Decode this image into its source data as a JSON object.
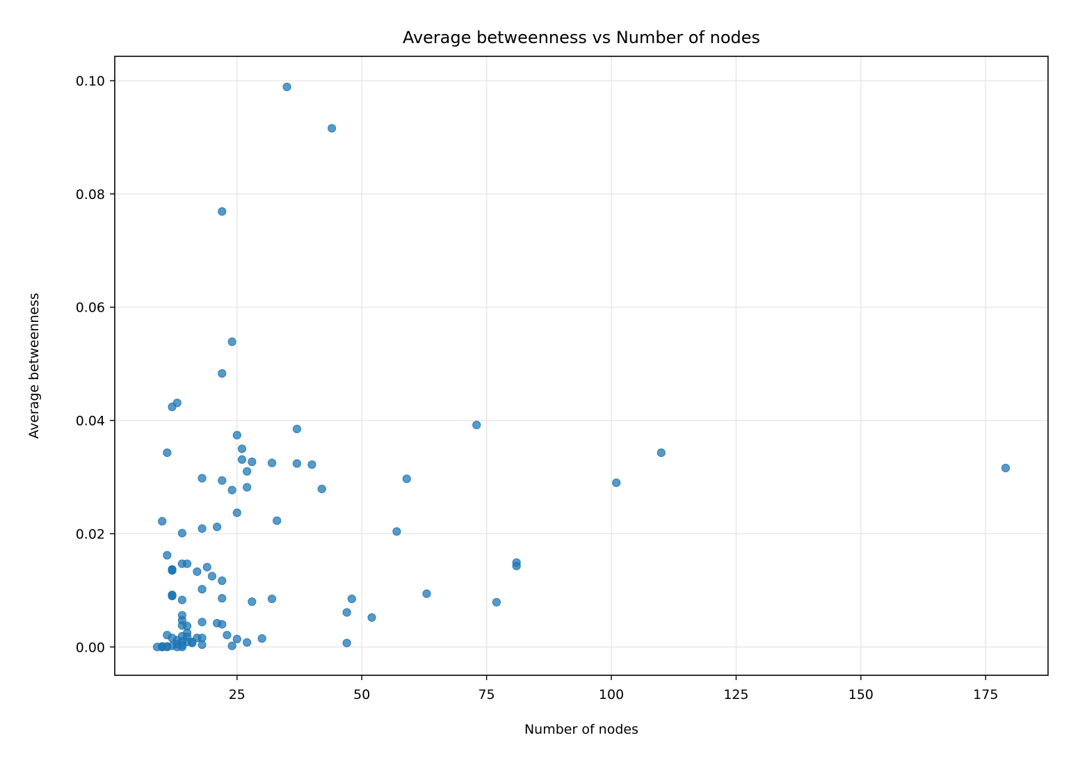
{
  "chart_data": {
    "type": "scatter",
    "title": "Average betweenness vs Number of nodes",
    "xlabel": "Number of nodes",
    "ylabel": "Average betweenness",
    "xlim": [
      0.5,
      187.5
    ],
    "ylim": [
      -0.005,
      0.1043
    ],
    "xticks": [
      25,
      50,
      75,
      100,
      125,
      150,
      175
    ],
    "yticks": [
      0.0,
      0.02,
      0.04,
      0.06,
      0.08,
      0.1
    ],
    "xtick_labels": [
      "25",
      "50",
      "75",
      "100",
      "125",
      "150",
      "175"
    ],
    "ytick_labels": [
      "0.00",
      "0.02",
      "0.04",
      "0.06",
      "0.08",
      "0.10"
    ],
    "grid": true,
    "marker_color": "#1f77b4",
    "marker_alpha": 0.75,
    "points": [
      [
        35,
        0.0989
      ],
      [
        44,
        0.0916
      ],
      [
        22,
        0.0769
      ],
      [
        24,
        0.0539
      ],
      [
        22,
        0.0483
      ],
      [
        13,
        0.0431
      ],
      [
        12,
        0.0424
      ],
      [
        73,
        0.0392
      ],
      [
        37,
        0.0385
      ],
      [
        25,
        0.0374
      ],
      [
        26,
        0.035
      ],
      [
        110,
        0.0343
      ],
      [
        11,
        0.0343
      ],
      [
        26,
        0.0331
      ],
      [
        28,
        0.0327
      ],
      [
        32,
        0.0325
      ],
      [
        37,
        0.0324
      ],
      [
        40,
        0.0322
      ],
      [
        179,
        0.0316
      ],
      [
        27,
        0.031
      ],
      [
        18,
        0.0298
      ],
      [
        59,
        0.0297
      ],
      [
        22,
        0.0294
      ],
      [
        101,
        0.029
      ],
      [
        27,
        0.0282
      ],
      [
        42,
        0.0279
      ],
      [
        24,
        0.0277
      ],
      [
        25,
        0.0237
      ],
      [
        33,
        0.0223
      ],
      [
        10,
        0.0222
      ],
      [
        21,
        0.0212
      ],
      [
        18,
        0.0209
      ],
      [
        57,
        0.0204
      ],
      [
        14,
        0.0201
      ],
      [
        11,
        0.0162
      ],
      [
        81,
        0.0149
      ],
      [
        14,
        0.0147
      ],
      [
        15,
        0.0147
      ],
      [
        81,
        0.0143
      ],
      [
        19,
        0.0141
      ],
      [
        12,
        0.0137
      ],
      [
        12,
        0.0136
      ],
      [
        12,
        0.0135
      ],
      [
        17,
        0.0133
      ],
      [
        20,
        0.0125
      ],
      [
        22,
        0.0117
      ],
      [
        18,
        0.0102
      ],
      [
        63,
        0.0094
      ],
      [
        12,
        0.0092
      ],
      [
        12,
        0.0091
      ],
      [
        12,
        0.009
      ],
      [
        22,
        0.0086
      ],
      [
        32,
        0.0085
      ],
      [
        48,
        0.0085
      ],
      [
        14,
        0.0083
      ],
      [
        28,
        0.008
      ],
      [
        77,
        0.0079
      ],
      [
        47,
        0.0061
      ],
      [
        14,
        0.0056
      ],
      [
        52,
        0.0052
      ],
      [
        14,
        0.0047
      ],
      [
        18,
        0.0044
      ],
      [
        21,
        0.0042
      ],
      [
        22,
        0.004
      ],
      [
        14,
        0.0038
      ],
      [
        15,
        0.0037
      ],
      [
        15,
        0.0025
      ],
      [
        11,
        0.0021
      ],
      [
        23,
        0.0021
      ],
      [
        14,
        0.0019
      ],
      [
        15,
        0.0018
      ],
      [
        12,
        0.0016
      ],
      [
        17,
        0.0016
      ],
      [
        18,
        0.0016
      ],
      [
        30,
        0.0015
      ],
      [
        25,
        0.0014
      ],
      [
        13,
        0.0012
      ],
      [
        14,
        0.001
      ],
      [
        16,
        0.0009
      ],
      [
        15,
        0.0009
      ],
      [
        27,
        0.0008
      ],
      [
        47,
        0.0007
      ],
      [
        16,
        0.0007
      ],
      [
        13,
        0.0005
      ],
      [
        18,
        0.0004
      ],
      [
        14,
        0.0003
      ],
      [
        24,
        0.0002
      ],
      [
        9,
        0.0
      ],
      [
        10,
        0.0
      ],
      [
        10,
        0.0001
      ],
      [
        11,
        0.0
      ],
      [
        11,
        0.0001
      ],
      [
        13,
        0.0
      ],
      [
        14,
        0.0
      ],
      [
        12,
        0.0002
      ],
      [
        10,
        0.0
      ]
    ]
  }
}
